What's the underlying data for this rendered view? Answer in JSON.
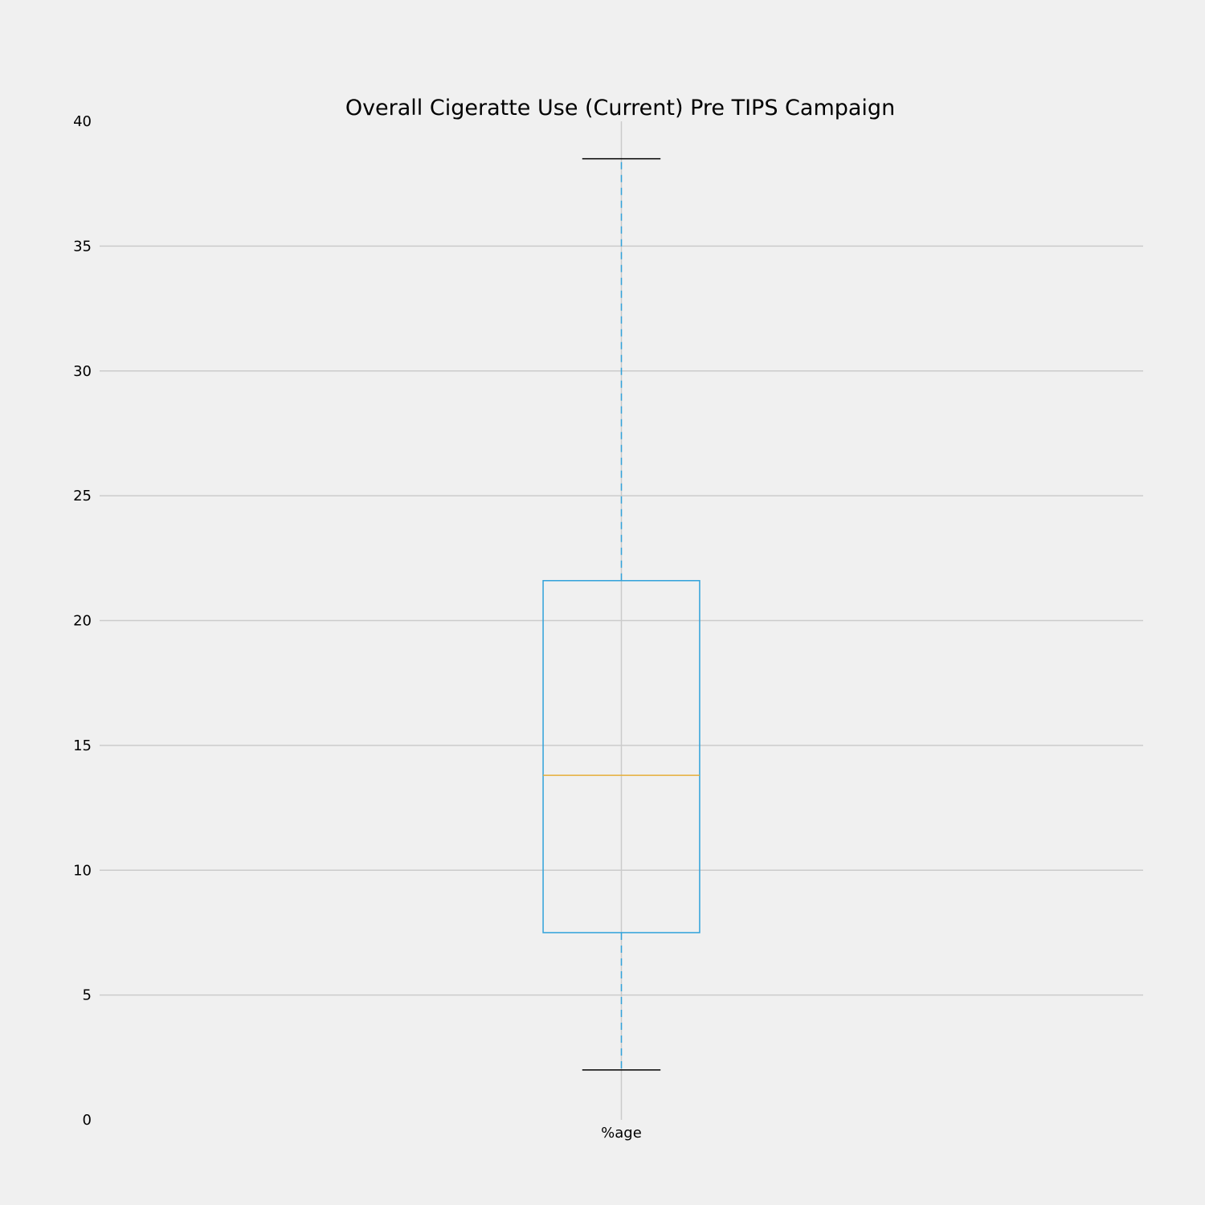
{
  "chart_data": {
    "type": "box",
    "title": "Overall Cigeratte Use (Current) Pre TIPS Campaign",
    "xlabel": "",
    "ylabel": "",
    "categories": [
      "%age"
    ],
    "series": [
      {
        "whisker_low": 2.0,
        "q1": 7.5,
        "median": 13.8,
        "q3": 21.6,
        "whisker_high": 38.5
      }
    ],
    "ylim": [
      0,
      40
    ],
    "yticks": [
      0,
      5,
      10,
      15,
      20,
      25,
      30,
      35,
      40
    ],
    "grid": true,
    "colors": {
      "background": "#f0f0f0",
      "grid": "#cbcbcb",
      "box": "#30a2da",
      "median": "#e5ae38",
      "caps": "#000000"
    }
  }
}
